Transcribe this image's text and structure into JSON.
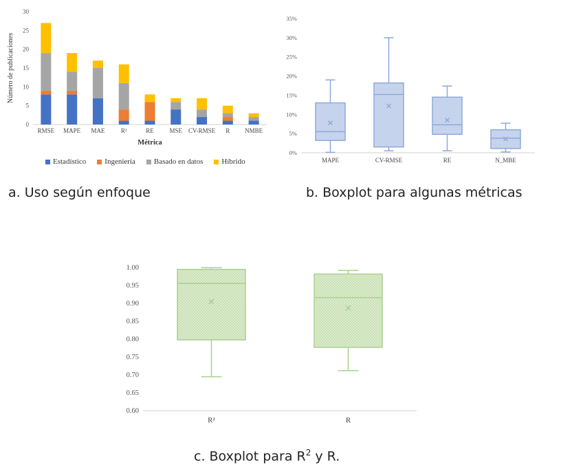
{
  "captions": {
    "a": "a. Uso según enfoque",
    "b": "b. Boxplot para algunas métricas",
    "c_pre": "c. Boxplot para R",
    "c_sup": "2",
    "c_post": " y R."
  },
  "chart_data": [
    {
      "type": "bar",
      "stacked": true,
      "xlabel": "Métrica",
      "ylabel": "Número de publicaciones",
      "ylim": [
        0,
        30
      ],
      "yticks": [
        0,
        5,
        10,
        15,
        20,
        25,
        30
      ],
      "categories": [
        "RMSE",
        "MAPE",
        "MAE",
        "R²",
        "RE",
        "MSE",
        "CV-RMSE",
        "R",
        "NMBE"
      ],
      "series": [
        {
          "name": "Estadístico",
          "color": "#4472C4",
          "values": [
            8,
            8,
            7,
            1,
            1,
            4,
            2,
            1,
            1
          ]
        },
        {
          "name": "Ingeniería",
          "color": "#ED7D31",
          "values": [
            1,
            1,
            0,
            3,
            5,
            0,
            0,
            1,
            0
          ]
        },
        {
          "name": "Basado en datos",
          "color": "#A5A5A5",
          "values": [
            10,
            5,
            8,
            7,
            0,
            2,
            2,
            1,
            1
          ]
        },
        {
          "name": "Híbrido",
          "color": "#FFC000",
          "values": [
            8,
            5,
            2,
            5,
            2,
            1,
            3,
            2,
            1
          ]
        }
      ],
      "legend_position": "bottom",
      "grid": false
    },
    {
      "type": "box",
      "ylim": [
        0,
        35
      ],
      "yticks": [
        "0%",
        "5%",
        "10%",
        "15%",
        "20%",
        "25%",
        "30%",
        "35%"
      ],
      "categories": [
        "MAPE",
        "CV-RMSE",
        "RE",
        "N_MBE"
      ],
      "boxes": [
        {
          "min": 0.1,
          "q1": 3.2,
          "median": 5.5,
          "q3": 13.0,
          "max": 19.0,
          "mean": 7.8
        },
        {
          "min": 0.5,
          "q1": 1.5,
          "median": 15.2,
          "q3": 18.2,
          "max": 30.0,
          "mean": 12.2
        },
        {
          "min": 0.5,
          "q1": 4.8,
          "median": 7.3,
          "q3": 14.5,
          "max": 17.4,
          "mean": 8.5
        },
        {
          "min": 0.2,
          "q1": 1.1,
          "median": 3.8,
          "q3": 6.0,
          "max": 7.7,
          "mean": 3.6
        }
      ],
      "color": "#8EA9DB",
      "fill": "#C5D4EC",
      "grid": false
    },
    {
      "type": "box",
      "ylim": [
        0.6,
        1.0
      ],
      "yticks": [
        "0.60",
        "0.65",
        "0.70",
        "0.75",
        "0.80",
        "0.85",
        "0.90",
        "0.95",
        "1.00"
      ],
      "categories": [
        "R²",
        "R"
      ],
      "boxes": [
        {
          "min": 0.695,
          "q1": 0.798,
          "median": 0.956,
          "q3": 0.995,
          "max": 1.0,
          "mean": 0.905
        },
        {
          "min": 0.712,
          "q1": 0.777,
          "median": 0.916,
          "q3": 0.982,
          "max": 0.992,
          "mean": 0.887
        }
      ],
      "color": "#A9D18E",
      "fill": "#DDEBCF",
      "grid": false
    }
  ]
}
